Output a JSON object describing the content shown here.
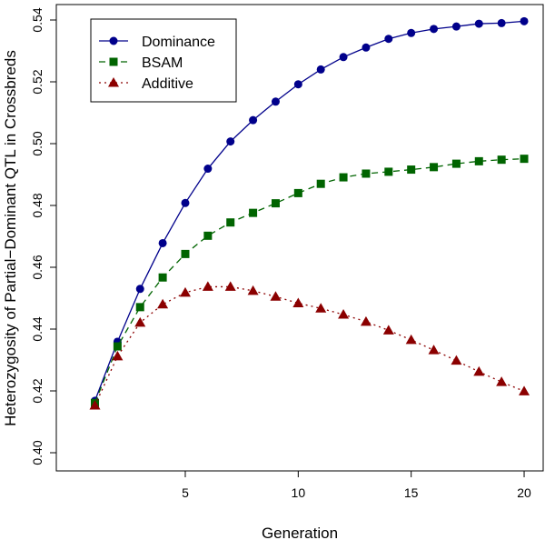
{
  "chart_data": {
    "type": "line",
    "title": "",
    "xlabel": "Generation",
    "ylabel": "Heterozygosity of Partial−Dominant QTL in Crossbreds",
    "xlim": [
      1,
      20
    ],
    "ylim": [
      0.4,
      0.54
    ],
    "xticks": [
      5,
      10,
      15,
      20
    ],
    "xtick_labels": [
      "5",
      "10",
      "15",
      "20"
    ],
    "yticks": [
      0.4,
      0.42,
      0.44,
      0.46,
      0.48,
      0.5,
      0.52,
      0.54
    ],
    "ytick_labels": [
      "0.40",
      "0.42",
      "0.44",
      "0.46",
      "0.48",
      "0.50",
      "0.52",
      "0.54"
    ],
    "grid": false,
    "legend_position": "top-left",
    "x": [
      1,
      2,
      3,
      4,
      5,
      6,
      7,
      8,
      9,
      10,
      11,
      12,
      13,
      14,
      15,
      16,
      17,
      18,
      19,
      20
    ],
    "series": [
      {
        "name": "Dominance",
        "color": "#00008b",
        "marker": "circle",
        "line": "solid",
        "values": [
          0.4168,
          0.4359,
          0.453,
          0.4678,
          0.4808,
          0.4919,
          0.5007,
          0.5076,
          0.5136,
          0.5192,
          0.524,
          0.528,
          0.5311,
          0.5339,
          0.5358,
          0.5371,
          0.5379,
          0.5388,
          0.539,
          0.5396
        ]
      },
      {
        "name": "BSAM",
        "color": "#006400",
        "marker": "square",
        "line": "dashed",
        "values": [
          0.4161,
          0.4344,
          0.4471,
          0.4567,
          0.4643,
          0.4702,
          0.4745,
          0.4776,
          0.4807,
          0.484,
          0.487,
          0.4891,
          0.4903,
          0.4909,
          0.4916,
          0.4924,
          0.4935,
          0.4943,
          0.4948,
          0.4951
        ]
      },
      {
        "name": "Additive",
        "color": "#8b0000",
        "marker": "triangle",
        "line": "dotted",
        "values": [
          0.4153,
          0.4312,
          0.4421,
          0.448,
          0.4518,
          0.4537,
          0.4537,
          0.4524,
          0.4505,
          0.4484,
          0.4467,
          0.4447,
          0.4424,
          0.4396,
          0.4365,
          0.4332,
          0.4298,
          0.4262,
          0.4229,
          0.4199
        ]
      }
    ]
  }
}
